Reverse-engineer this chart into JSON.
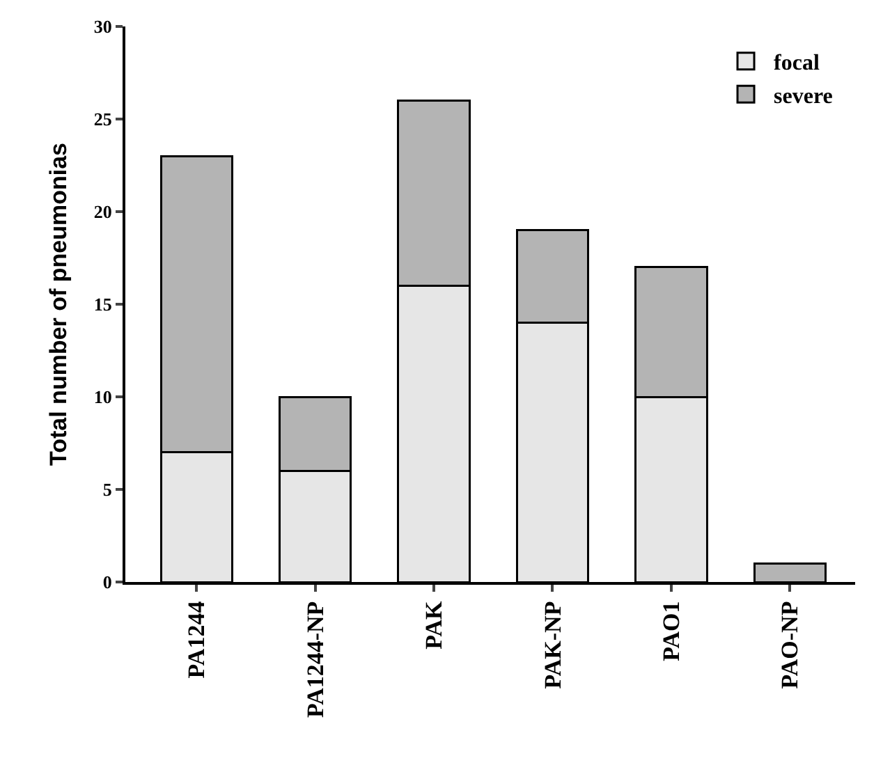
{
  "chart_data": {
    "type": "bar",
    "stacked": true,
    "ylabel": "Total number of pneumonias",
    "categories": [
      "PA1244",
      "PA1244-NP",
      "PAK",
      "PAK-NP",
      "PAO1",
      "PAO-NP"
    ],
    "series": [
      {
        "name": "focal",
        "color": "#e6e6e6",
        "values": [
          7,
          6,
          16,
          14,
          10,
          0
        ]
      },
      {
        "name": "severe",
        "color": "#b4b4b4",
        "values": [
          16,
          4,
          10,
          5,
          7,
          1
        ]
      }
    ],
    "ylim": [
      0,
      30
    ],
    "yticks": [
      0,
      5,
      10,
      15,
      20,
      25,
      30
    ],
    "legend": "top right"
  }
}
